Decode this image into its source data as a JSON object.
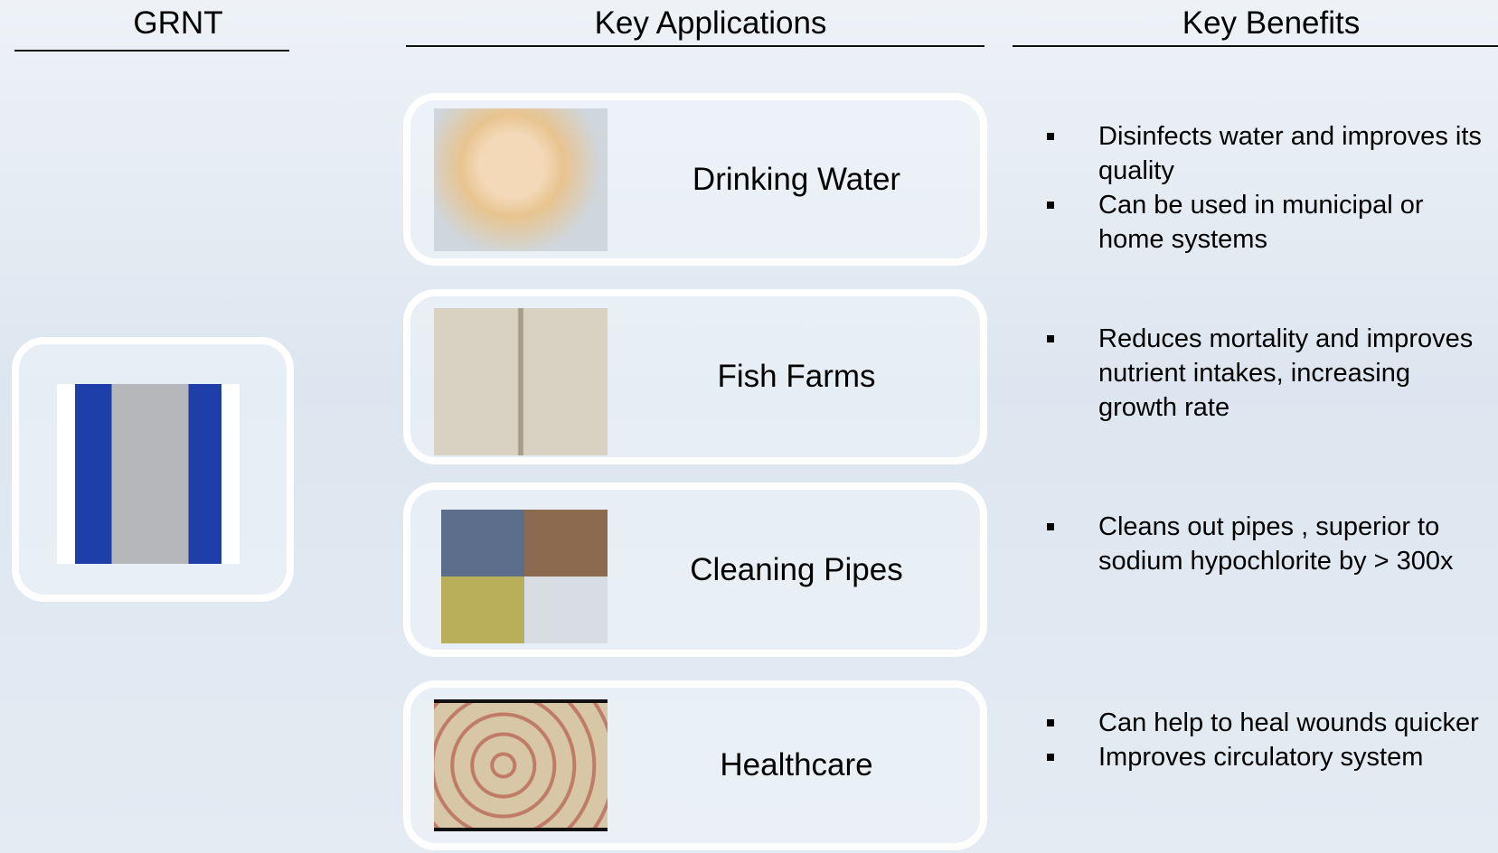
{
  "headers": [
    "GRNT",
    "Key Applications",
    "Key Benefits"
  ],
  "applications": [
    {
      "label": "Drinking Water",
      "benefits": [
        "Disinfects water and improves its quality",
        "Can be used in municipal or home systems"
      ]
    },
    {
      "label": "Fish Farms",
      "benefits": [
        "Reduces mortality and improves nutrient intakes, increasing growth rate"
      ]
    },
    {
      "label": "Cleaning Pipes",
      "benefits": [
        "Cleans out pipes , superior to sodium hypochlorite by > 300x"
      ]
    },
    {
      "label": "Healthcare",
      "benefits": [
        "Can help to heal wounds quicker",
        "Improves circulatory system"
      ]
    }
  ]
}
